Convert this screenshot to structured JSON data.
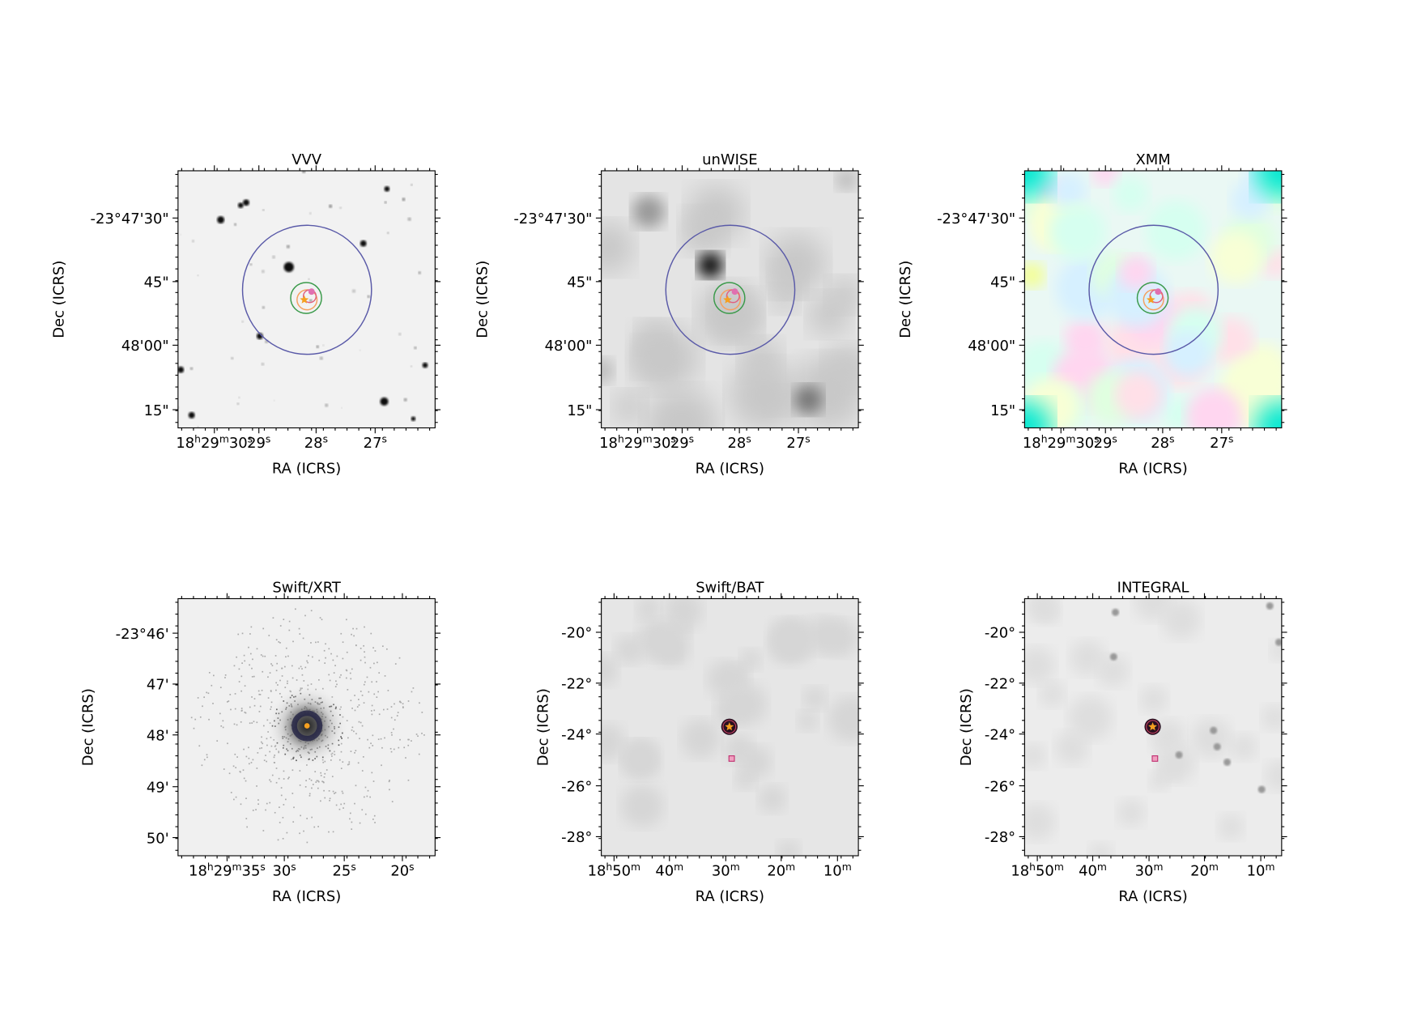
{
  "panels": [
    {
      "title": "VVV",
      "xlabel": "RA (ICRS)",
      "ylabel": "Dec (ICRS)",
      "xticks": [
        "18h29m30s",
        "29s",
        "28s",
        "27s"
      ],
      "yticks": [
        "-23°47'30\"",
        "45\"",
        "48'00\"",
        "15\""
      ]
    },
    {
      "title": "unWISE",
      "xlabel": "RA (ICRS)",
      "ylabel": "Dec (ICRS)",
      "xticks": [
        "18h29m30s",
        "29s",
        "28s",
        "27s"
      ],
      "yticks": [
        "-23°47'30\"",
        "45\"",
        "48'00\"",
        "15\""
      ]
    },
    {
      "title": "XMM",
      "xlabel": "RA (ICRS)",
      "ylabel": "Dec (ICRS)",
      "xticks": [
        "18h29m30s",
        "29s",
        "28s",
        "27s"
      ],
      "yticks": [
        "-23°47'30\"",
        "45\"",
        "48'00\"",
        "15\""
      ]
    },
    {
      "title": "Swift/XRT",
      "xlabel": "RA (ICRS)",
      "ylabel": "Dec (ICRS)",
      "xticks": [
        "18h29m35s",
        "30s",
        "25s",
        "20s"
      ],
      "yticks": [
        "-23°46'",
        "47'",
        "48'",
        "49'",
        "50'"
      ]
    },
    {
      "title": "Swift/BAT",
      "xlabel": "RA (ICRS)",
      "ylabel": "Dec (ICRS)",
      "xticks": [
        "18h50m",
        "40m",
        "30m",
        "20m",
        "10m"
      ],
      "yticks": [
        "-20°",
        "-22°",
        "-24°",
        "-26°",
        "-28°"
      ]
    },
    {
      "title": "INTEGRAL",
      "xlabel": "RA (ICRS)",
      "ylabel": "Dec (ICRS)",
      "xticks": [
        "18h50m",
        "40m",
        "30m",
        "20m",
        "10m"
      ],
      "yticks": [
        "-20°",
        "-22°",
        "-24°",
        "-26°",
        "-28°"
      ]
    }
  ]
}
